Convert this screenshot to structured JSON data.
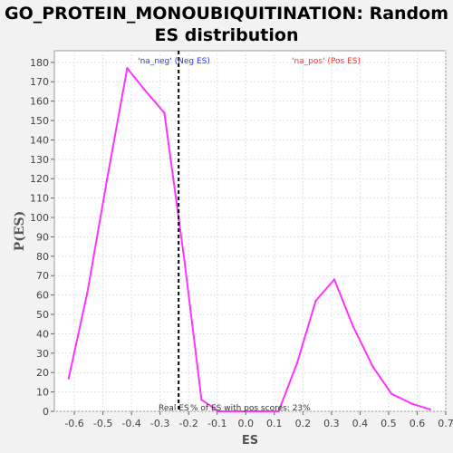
{
  "chart_data": {
    "type": "line",
    "title_lines": [
      "GO_PROTEIN_MONOUBIQUITINATION: Random",
      "ES distribution"
    ],
    "xlabel": "ES",
    "ylabel": "P(ES)",
    "xlim": [
      -0.67,
      0.7
    ],
    "ylim": [
      0,
      186
    ],
    "x_ticks": [
      -0.6,
      -0.5,
      -0.4,
      -0.3,
      -0.2,
      -0.1,
      0.0,
      0.1,
      0.2,
      0.3,
      0.4,
      0.5,
      0.6,
      0.7
    ],
    "x_tick_labels": [
      "-0.6",
      "-0.5",
      "-0.4",
      "-0.3",
      "-0.2",
      "-0.1",
      "0.0",
      "0.1",
      "0.2",
      "0.3",
      "0.4",
      "0.5",
      "0.6",
      "0.7"
    ],
    "y_ticks": [
      0,
      10,
      20,
      30,
      40,
      50,
      60,
      70,
      80,
      90,
      100,
      110,
      120,
      130,
      140,
      150,
      160,
      170,
      180
    ],
    "grid": true,
    "series": [
      {
        "color": "#ff33ff",
        "x": [
          -0.62,
          -0.555,
          -0.485,
          -0.415,
          -0.355,
          -0.285,
          -0.215,
          -0.155,
          -0.095,
          -0.035,
          0.03,
          0.115,
          0.18,
          0.245,
          0.31,
          0.375,
          0.445,
          0.51,
          0.58,
          0.645
        ],
        "y": [
          17,
          61,
          120,
          177,
          166,
          154,
          78,
          6,
          0,
          0,
          0,
          0,
          25,
          57,
          68,
          44,
          23,
          9,
          4,
          1
        ]
      }
    ],
    "real_es": -0.235,
    "annotations": {
      "neg_label": "'na_neg' (Neg ES)",
      "pos_label": "'na_pos' (Pos ES)",
      "real_es_label": "Real ES",
      "pos_scores_label": "% of ES with pos scores: 23%"
    },
    "colors": {
      "neg_label": "#3333ff",
      "pos_label": "#ff3333",
      "line": "#ff33ff",
      "real_es_line": "#000000"
    }
  }
}
